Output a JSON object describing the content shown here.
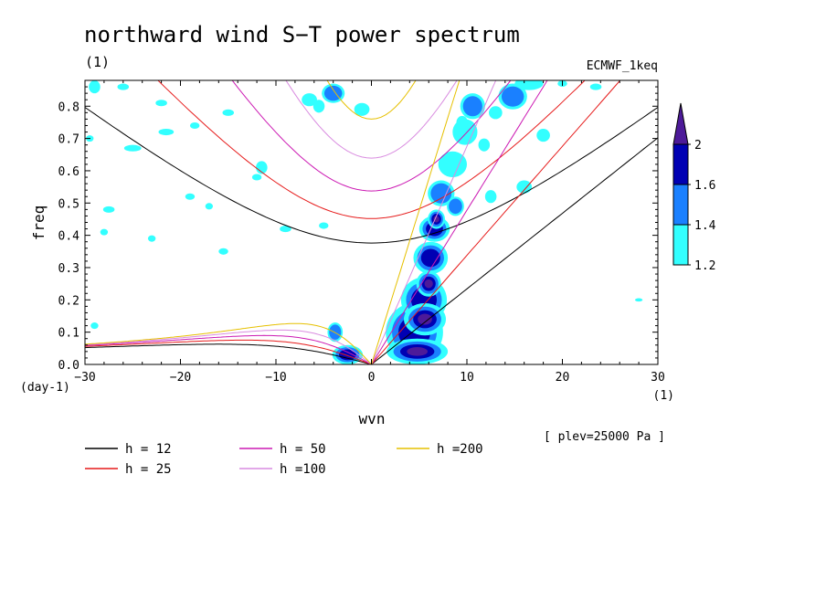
{
  "chart_data": {
    "type": "contour",
    "title": "northward wind S−T power spectrum",
    "subtitle_left": "(1)",
    "subtitle_right": "ECMWF_1keq",
    "xlabel": "wvn",
    "ylabel": "freq",
    "x_unit": "(1)",
    "y_unit": "(day-1)",
    "xlim": [
      -30,
      30
    ],
    "ylim": [
      0,
      0.88
    ],
    "x_ticks": [
      -30,
      -20,
      -10,
      0,
      10,
      20,
      30
    ],
    "x_tick_labels": [
      "−30",
      "−20",
      "−10",
      "0",
      "10",
      "20",
      "30"
    ],
    "y_ticks": [
      0,
      0.1,
      0.2,
      0.3,
      0.4,
      0.5,
      0.6,
      0.7,
      0.8
    ],
    "y_tick_labels": [
      "0.0",
      "0.1",
      "0.2",
      "0.3",
      "0.4",
      "0.5",
      "0.6",
      "0.7",
      "0.8"
    ],
    "plev_note": "[ plev=25000 Pa ]",
    "colorbar": {
      "levels": [
        1.2,
        1.4,
        1.6,
        2
      ],
      "level_labels": [
        "1.2",
        "1.4",
        "1.6",
        "2"
      ],
      "colors": [
        "#33ffff",
        "#1a80ff",
        "#0000b3",
        "#4d1a99"
      ]
    },
    "dispersion_curves": [
      {
        "h": 12,
        "label": "h = 12",
        "color": "#000000"
      },
      {
        "h": 25,
        "label": "h = 25",
        "color": "#e61a1a"
      },
      {
        "h": 50,
        "label": "h = 50",
        "color": "#cc1ab3"
      },
      {
        "h": 100,
        "label": "h =100",
        "color": "#d98ce0"
      },
      {
        "h": 200,
        "label": "h =200",
        "color": "#e6c000"
      }
    ],
    "filled_regions": [
      {
        "x": 4.5,
        "y": 0.1,
        "rx": 3.0,
        "ry": 0.09,
        "level": 3
      },
      {
        "x": 5.5,
        "y": 0.2,
        "rx": 2.4,
        "ry": 0.07,
        "level": 3
      },
      {
        "x": 6.2,
        "y": 0.33,
        "rx": 1.8,
        "ry": 0.05,
        "level": 3
      },
      {
        "x": 6.6,
        "y": 0.42,
        "rx": 1.6,
        "ry": 0.04,
        "level": 3
      },
      {
        "x": 7.3,
        "y": 0.53,
        "rx": 1.4,
        "ry": 0.04,
        "level": 2
      },
      {
        "x": 8.5,
        "y": 0.62,
        "rx": 1.5,
        "ry": 0.04,
        "level": 1
      },
      {
        "x": 9.8,
        "y": 0.72,
        "rx": 1.3,
        "ry": 0.04,
        "level": 1
      },
      {
        "x": 10.6,
        "y": 0.8,
        "rx": 1.3,
        "ry": 0.04,
        "level": 2
      },
      {
        "x": 14.8,
        "y": 0.83,
        "rx": 1.5,
        "ry": 0.04,
        "level": 2
      },
      {
        "x": 16.5,
        "y": 0.87,
        "rx": 1.5,
        "ry": 0.02,
        "level": 1
      },
      {
        "x": -2.5,
        "y": 0.03,
        "rx": 1.6,
        "ry": 0.03,
        "level": 3
      },
      {
        "x": -3.8,
        "y": 0.1,
        "rx": 0.8,
        "ry": 0.03,
        "level": 2
      },
      {
        "x": 4.8,
        "y": 0.04,
        "rx": 3.2,
        "ry": 0.04,
        "level": 4
      },
      {
        "x": 5.6,
        "y": 0.14,
        "rx": 2.2,
        "ry": 0.05,
        "level": 4
      },
      {
        "x": 6.0,
        "y": 0.25,
        "rx": 1.3,
        "ry": 0.04,
        "level": 4
      },
      {
        "x": 6.8,
        "y": 0.45,
        "rx": 0.9,
        "ry": 0.03,
        "level": 4
      },
      {
        "x": 8.8,
        "y": 0.49,
        "rx": 0.9,
        "ry": 0.03,
        "level": 2
      },
      {
        "x": -4.0,
        "y": 0.84,
        "rx": 1.2,
        "ry": 0.03,
        "level": 2
      },
      {
        "x": -5.5,
        "y": 0.8,
        "rx": 0.6,
        "ry": 0.02,
        "level": 1
      },
      {
        "x": -1.0,
        "y": 0.79,
        "rx": 0.8,
        "ry": 0.02,
        "level": 1
      },
      {
        "x": 13.0,
        "y": 0.78,
        "rx": 0.7,
        "ry": 0.02,
        "level": 1
      },
      {
        "x": 16.0,
        "y": 0.55,
        "rx": 0.8,
        "ry": 0.02,
        "level": 1
      },
      {
        "x": 11.8,
        "y": 0.68,
        "rx": 0.6,
        "ry": 0.02,
        "level": 1
      },
      {
        "x": 18.0,
        "y": 0.71,
        "rx": 0.7,
        "ry": 0.02,
        "level": 1
      },
      {
        "x": 9.5,
        "y": 0.75,
        "rx": 0.6,
        "ry": 0.02,
        "level": 1
      },
      {
        "x": 12.5,
        "y": 0.52,
        "rx": 0.6,
        "ry": 0.02,
        "level": 1
      },
      {
        "x": -29.0,
        "y": 0.86,
        "rx": 0.6,
        "ry": 0.02,
        "level": 1
      },
      {
        "x": -26.0,
        "y": 0.86,
        "rx": 0.6,
        "ry": 0.01,
        "level": 1
      },
      {
        "x": -22.0,
        "y": 0.81,
        "rx": 0.6,
        "ry": 0.01,
        "level": 1
      },
      {
        "x": -21.5,
        "y": 0.72,
        "rx": 0.8,
        "ry": 0.01,
        "level": 1
      },
      {
        "x": -25.0,
        "y": 0.67,
        "rx": 0.9,
        "ry": 0.01,
        "level": 1
      },
      {
        "x": -15.0,
        "y": 0.78,
        "rx": 0.6,
        "ry": 0.01,
        "level": 1
      },
      {
        "x": -18.5,
        "y": 0.74,
        "rx": 0.5,
        "ry": 0.01,
        "level": 1
      },
      {
        "x": -11.5,
        "y": 0.61,
        "rx": 0.6,
        "ry": 0.02,
        "level": 1
      },
      {
        "x": -6.5,
        "y": 0.82,
        "rx": 0.8,
        "ry": 0.02,
        "level": 1
      },
      {
        "x": -12.0,
        "y": 0.58,
        "rx": 0.5,
        "ry": 0.01,
        "level": 1
      },
      {
        "x": -27.5,
        "y": 0.48,
        "rx": 0.6,
        "ry": 0.01,
        "level": 1
      },
      {
        "x": -19.0,
        "y": 0.52,
        "rx": 0.5,
        "ry": 0.01,
        "level": 1
      },
      {
        "x": -15.5,
        "y": 0.35,
        "rx": 0.5,
        "ry": 0.01,
        "level": 1
      },
      {
        "x": -28.0,
        "y": 0.41,
        "rx": 0.4,
        "ry": 0.01,
        "level": 1
      },
      {
        "x": -9.0,
        "y": 0.42,
        "rx": 0.6,
        "ry": 0.01,
        "level": 1
      },
      {
        "x": -5.0,
        "y": 0.43,
        "rx": 0.5,
        "ry": 0.01,
        "level": 1
      },
      {
        "x": -23.0,
        "y": 0.39,
        "rx": 0.4,
        "ry": 0.01,
        "level": 1
      },
      {
        "x": -29.5,
        "y": 0.7,
        "rx": 0.4,
        "ry": 0.01,
        "level": 1
      },
      {
        "x": -17.0,
        "y": 0.49,
        "rx": 0.4,
        "ry": 0.01,
        "level": 1
      },
      {
        "x": -29.0,
        "y": 0.12,
        "rx": 0.4,
        "ry": 0.01,
        "level": 1
      },
      {
        "x": 28.0,
        "y": 0.2,
        "rx": 0.4,
        "ry": 0.005,
        "level": 1
      },
      {
        "x": 23.5,
        "y": 0.86,
        "rx": 0.6,
        "ry": 0.01,
        "level": 1
      },
      {
        "x": 20.0,
        "y": 0.87,
        "rx": 0.5,
        "ry": 0.01,
        "level": 1
      }
    ]
  }
}
